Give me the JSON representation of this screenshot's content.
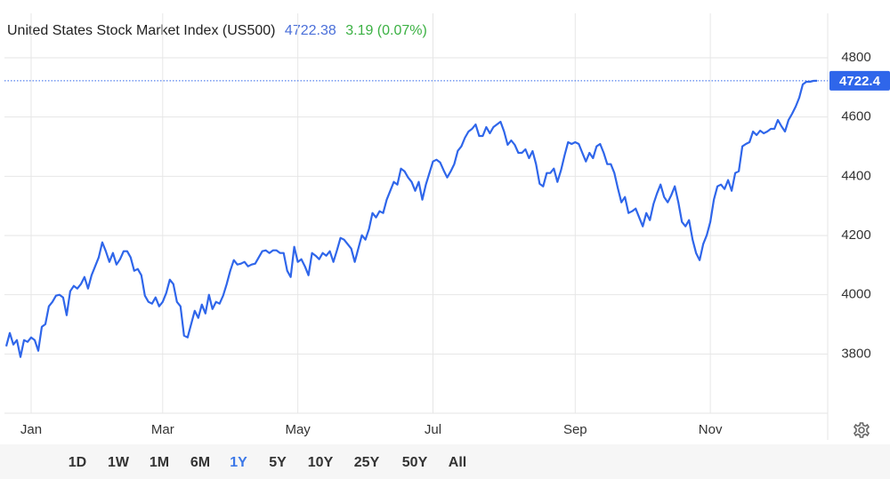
{
  "chart_data": {
    "type": "line",
    "title": "United States Stock Market Index (US500)",
    "quote": {
      "price": "4722.38",
      "change": "3.19 (0.07%)",
      "price_color": "#4a6fd9",
      "change_color": "#3bb143"
    },
    "categories": [
      null,
      null,
      null,
      null,
      null,
      null,
      null,
      "Jan",
      null,
      null,
      null,
      null,
      null,
      null,
      null,
      null,
      null,
      null,
      null,
      null,
      null,
      null,
      null,
      null,
      null,
      null,
      null,
      null,
      null,
      null,
      null,
      null,
      null,
      null,
      null,
      null,
      null,
      null,
      null,
      null,
      null,
      null,
      null,
      null,
      "Mar",
      null,
      null,
      null,
      null,
      null,
      null,
      null,
      null,
      null,
      null,
      null,
      null,
      null,
      null,
      null,
      null,
      null,
      null,
      null,
      null,
      null,
      null,
      null,
      null,
      null,
      null,
      null,
      null,
      null,
      null,
      null,
      null,
      null,
      null,
      null,
      null,
      null,
      "May",
      null,
      null,
      null,
      null,
      null,
      null,
      null,
      null,
      null,
      null,
      null,
      null,
      null,
      null,
      null,
      null,
      null,
      null,
      null,
      null,
      null,
      null,
      null,
      null,
      null,
      null,
      null,
      null,
      null,
      null,
      null,
      null,
      null,
      null,
      null,
      null,
      null,
      "Jul",
      null,
      null,
      null,
      null,
      null,
      null,
      null,
      null,
      null,
      null,
      null,
      null,
      null,
      null,
      null,
      null,
      null,
      null,
      null,
      null,
      null,
      null,
      null,
      null,
      null,
      null,
      null,
      null,
      null,
      null,
      null,
      null,
      null,
      null,
      null,
      null,
      null,
      null,
      null,
      "Sep",
      null,
      null,
      null,
      null,
      null,
      null,
      null,
      null,
      null,
      null,
      null,
      null,
      null,
      null,
      null,
      null,
      null,
      null,
      null,
      null,
      null,
      null,
      null,
      null,
      null,
      null,
      null,
      null,
      null,
      null,
      null,
      null,
      null,
      null,
      null,
      null,
      null,
      "Nov",
      null,
      null,
      null,
      null,
      null,
      null,
      null,
      null,
      null,
      null,
      null,
      null,
      null,
      null,
      null,
      null,
      null,
      null,
      null,
      null,
      null,
      null,
      null,
      null,
      null,
      null,
      null,
      null,
      null,
      null
    ],
    "series": [
      {
        "name": "US500",
        "color": "#2f66ea",
        "values": [
          3826,
          3871,
          3832,
          3847,
          3790,
          3847,
          3841,
          3856,
          3847,
          3811,
          3892,
          3901,
          3961,
          3976,
          3997,
          4000,
          3991,
          3931,
          4012,
          4030,
          4021,
          4036,
          4060,
          4021,
          4066,
          4096,
          4126,
          4177,
          4147,
          4111,
          4141,
          4102,
          4120,
          4147,
          4147,
          4126,
          4081,
          4087,
          4066,
          3997,
          3976,
          3970,
          3991,
          3961,
          3976,
          4006,
          4051,
          4036,
          3976,
          3961,
          3862,
          3856,
          3901,
          3946,
          3922,
          3967,
          3937,
          4000,
          3952,
          3976,
          3970,
          3997,
          4036,
          4081,
          4117,
          4102,
          4105,
          4111,
          4096,
          4102,
          4105,
          4126,
          4147,
          4150,
          4141,
          4150,
          4150,
          4141,
          4141,
          4081,
          4060,
          4162,
          4111,
          4120,
          4096,
          4066,
          4141,
          4132,
          4120,
          4141,
          4132,
          4147,
          4111,
          4150,
          4192,
          4186,
          4171,
          4156,
          4111,
          4156,
          4201,
          4186,
          4222,
          4276,
          4261,
          4282,
          4276,
          4321,
          4351,
          4381,
          4372,
          4426,
          4417,
          4396,
          4381,
          4351,
          4381,
          4321,
          4372,
          4411,
          4450,
          4456,
          4447,
          4420,
          4396,
          4417,
          4441,
          4486,
          4501,
          4530,
          4551,
          4560,
          4575,
          4536,
          4536,
          4566,
          4545,
          4566,
          4575,
          4584,
          4551,
          4506,
          4521,
          4506,
          4479,
          4479,
          4491,
          4461,
          4485,
          4441,
          4375,
          4366,
          4411,
          4411,
          4426,
          4381,
          4420,
          4470,
          4515,
          4509,
          4515,
          4509,
          4479,
          4450,
          4479,
          4461,
          4501,
          4509,
          4479,
          4441,
          4441,
          4411,
          4360,
          4312,
          4330,
          4276,
          4282,
          4291,
          4261,
          4231,
          4276,
          4252,
          4306,
          4342,
          4372,
          4330,
          4312,
          4336,
          4366,
          4312,
          4246,
          4231,
          4252,
          4186,
          4141,
          4117,
          4171,
          4201,
          4246,
          4321,
          4366,
          4372,
          4357,
          4387,
          4351,
          4411,
          4417,
          4501,
          4509,
          4515,
          4551,
          4539,
          4554,
          4545,
          4551,
          4560,
          4560,
          4590,
          4569,
          4551,
          4590,
          4611,
          4635,
          4665,
          4710,
          4719,
          4719,
          4722,
          4722.38
        ]
      }
    ],
    "last_price": {
      "value": 4722.4,
      "label": "4722.4",
      "color": "#2f66ea"
    },
    "ylim": [
      3600,
      4950
    ],
    "yticks": [
      3800,
      4000,
      4200,
      4400,
      4600,
      4800
    ],
    "grid": true,
    "range_buttons": [
      "1D",
      "1W",
      "1M",
      "6M",
      "1Y",
      "5Y",
      "10Y",
      "25Y",
      "50Y",
      "All"
    ],
    "active_range": "1Y",
    "active_color": "#3c78e8"
  }
}
